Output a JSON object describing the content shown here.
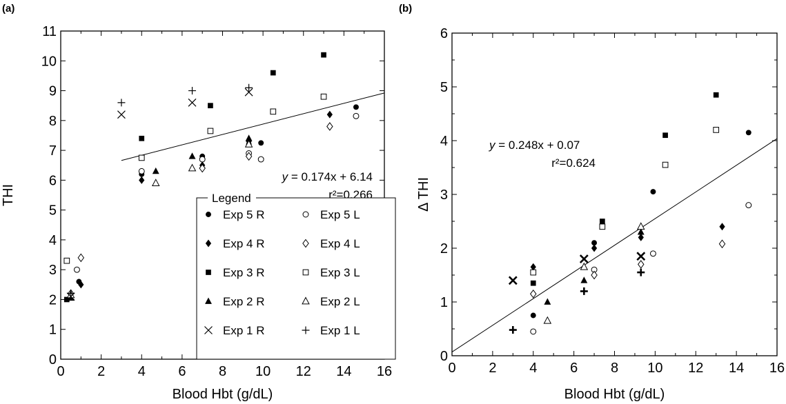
{
  "chart_data": [
    {
      "type": "scatter",
      "panel_label": "(a)",
      "xlabel": "Blood Hbt (g/dL)",
      "ylabel": "THI",
      "xlim": [
        0,
        16
      ],
      "ylim": [
        0,
        11
      ],
      "xticks": [
        "0",
        "2",
        "4",
        "6",
        "8",
        "10",
        "12",
        "14",
        "16"
      ],
      "yticks": [
        "0",
        "1",
        "2",
        "3",
        "4",
        "5",
        "6",
        "7",
        "8",
        "9",
        "10",
        "11"
      ],
      "equation": {
        "y": "y",
        "rhs": " = 0.174x + 6.14",
        "r2": "r²=0.266"
      },
      "fit": {
        "slope": 0.174,
        "intercept": 6.14,
        "x_range": [
          3,
          16
        ]
      },
      "legend": {
        "title": "Legend",
        "placement": "bottom-right"
      },
      "series": [
        {
          "name": "Exp 5 R",
          "marker": "circle-filled",
          "points": [
            [
              0.9,
              2.6
            ],
            [
              4.0,
              6.2
            ],
            [
              7.0,
              6.8
            ],
            [
              9.3,
              7.2
            ],
            [
              9.9,
              7.25
            ],
            [
              14.6,
              8.45
            ]
          ]
        },
        {
          "name": "Exp 5 L",
          "marker": "circle-open",
          "points": [
            [
              0.8,
              3.0
            ],
            [
              4.0,
              6.3
            ],
            [
              7.0,
              6.7
            ],
            [
              9.3,
              6.9
            ],
            [
              9.9,
              6.7
            ],
            [
              14.6,
              8.15
            ]
          ]
        },
        {
          "name": "Exp 4 R",
          "marker": "diamond-filled",
          "points": [
            [
              1.0,
              2.5
            ],
            [
              4.0,
              6.0
            ],
            [
              7.0,
              6.5
            ],
            [
              9.3,
              7.3
            ],
            [
              13.3,
              8.2
            ]
          ]
        },
        {
          "name": "Exp 4 L",
          "marker": "diamond-open",
          "points": [
            [
              1.0,
              3.4
            ],
            [
              0.5,
              2.2
            ],
            [
              7.0,
              6.4
            ],
            [
              9.3,
              6.8
            ],
            [
              13.3,
              7.8
            ]
          ]
        },
        {
          "name": "Exp 3 R",
          "marker": "square-filled",
          "points": [
            [
              0.3,
              2.0
            ],
            [
              4.0,
              7.4
            ],
            [
              7.4,
              8.5
            ],
            [
              10.5,
              9.6
            ],
            [
              13.0,
              10.2
            ]
          ]
        },
        {
          "name": "Exp 3 L",
          "marker": "square-open",
          "points": [
            [
              0.3,
              3.3
            ],
            [
              4.0,
              6.75
            ],
            [
              7.4,
              7.65
            ],
            [
              10.5,
              8.3
            ],
            [
              13.0,
              8.8
            ]
          ]
        },
        {
          "name": "Exp 2 R",
          "marker": "triangle-filled",
          "points": [
            [
              0.5,
              2.05
            ],
            [
              4.7,
              6.3
            ],
            [
              6.5,
              6.8
            ],
            [
              9.3,
              7.4
            ]
          ]
        },
        {
          "name": "Exp 2 L",
          "marker": "triangle-open",
          "points": [
            [
              0.5,
              2.15
            ],
            [
              4.7,
              5.9
            ],
            [
              6.5,
              6.4
            ],
            [
              9.3,
              7.2
            ]
          ]
        },
        {
          "name": "Exp 1 R",
          "marker": "x",
          "points": [
            [
              0.5,
              2.1
            ],
            [
              3.0,
              8.2
            ],
            [
              6.5,
              8.6
            ],
            [
              9.3,
              8.95
            ]
          ]
        },
        {
          "name": "Exp 1 L",
          "marker": "plus",
          "points": [
            [
              0.5,
              2.2
            ],
            [
              3.0,
              8.6
            ],
            [
              6.5,
              9.0
            ],
            [
              9.3,
              9.1
            ]
          ]
        }
      ]
    },
    {
      "type": "scatter",
      "panel_label": "(b)",
      "xlabel": "Blood Hbt (g/dL)",
      "ylabel": "Δ THI",
      "xlim": [
        0,
        16
      ],
      "ylim": [
        0,
        6
      ],
      "xticks": [
        "0",
        "2",
        "4",
        "6",
        "8",
        "10",
        "12",
        "14",
        "16"
      ],
      "yticks": [
        "0",
        "1",
        "2",
        "3",
        "4",
        "5",
        "6"
      ],
      "equation": {
        "y": "y",
        "rhs": " = 0.248x + 0.07",
        "r2": "r²=0.624"
      },
      "fit": {
        "slope": 0.248,
        "intercept": 0.07,
        "x_range": [
          0,
          16
        ]
      },
      "series": [
        {
          "name": "Exp 5 R",
          "marker": "circle-filled",
          "points": [
            [
              4.0,
              0.75
            ],
            [
              7.0,
              2.1
            ],
            [
              9.9,
              3.05
            ],
            [
              14.6,
              4.15
            ]
          ]
        },
        {
          "name": "Exp 5 L",
          "marker": "circle-open",
          "points": [
            [
              4.0,
              0.45
            ],
            [
              7.0,
              1.6
            ],
            [
              9.9,
              1.9
            ],
            [
              14.6,
              2.8
            ]
          ]
        },
        {
          "name": "Exp 4 R",
          "marker": "diamond-filled",
          "points": [
            [
              4.0,
              1.65
            ],
            [
              7.0,
              2.0
            ],
            [
              9.3,
              2.2
            ],
            [
              13.3,
              2.4
            ]
          ]
        },
        {
          "name": "Exp 4 L",
          "marker": "diamond-open",
          "points": [
            [
              4.0,
              1.15
            ],
            [
              7.0,
              1.5
            ],
            [
              9.3,
              1.7
            ],
            [
              13.3,
              2.08
            ]
          ]
        },
        {
          "name": "Exp 3 R",
          "marker": "square-filled",
          "points": [
            [
              4.0,
              1.35
            ],
            [
              7.4,
              2.5
            ],
            [
              10.5,
              4.1
            ],
            [
              13.0,
              4.85
            ]
          ]
        },
        {
          "name": "Exp 3 L",
          "marker": "square-open",
          "points": [
            [
              4.0,
              1.55
            ],
            [
              7.4,
              2.4
            ],
            [
              10.5,
              3.55
            ],
            [
              13.0,
              4.2
            ]
          ]
        },
        {
          "name": "Exp 2 R",
          "marker": "triangle-filled",
          "points": [
            [
              4.7,
              1.0
            ],
            [
              6.5,
              1.4
            ],
            [
              9.3,
              2.3
            ]
          ]
        },
        {
          "name": "Exp 2 L",
          "marker": "triangle-open",
          "points": [
            [
              4.7,
              0.65
            ],
            [
              6.5,
              1.65
            ],
            [
              9.3,
              2.4
            ]
          ]
        },
        {
          "name": "Exp 1 R",
          "marker": "x-bold",
          "points": [
            [
              3.0,
              1.4
            ],
            [
              6.5,
              1.8
            ],
            [
              9.3,
              1.85
            ]
          ]
        },
        {
          "name": "Exp 1 L",
          "marker": "plus-bold",
          "points": [
            [
              3.0,
              0.48
            ],
            [
              6.5,
              1.2
            ],
            [
              9.3,
              1.55
            ]
          ]
        }
      ]
    }
  ]
}
